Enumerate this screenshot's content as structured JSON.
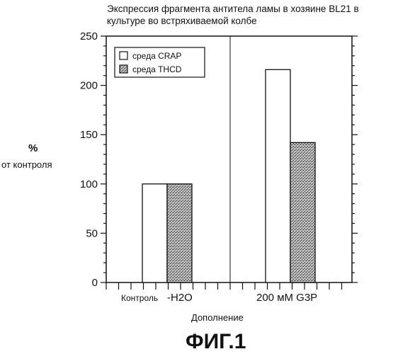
{
  "chart_data": {
    "type": "bar",
    "title": "Экспрессия фрагмента антитела ламы в хозяине BL21 в культуре во встряхиваемой колбе",
    "ylabel_symbol": "%",
    "ylabel": "от контроля",
    "xlabel": "Дополнение",
    "categories": [
      "Контроль",
      "-H2O",
      "200 мМ G3P"
    ],
    "series": [
      {
        "name": "среда CRAP",
        "values": [
          null,
          100,
          216
        ],
        "color": "#ffffff"
      },
      {
        "name": "среда THCD",
        "values": [
          null,
          100,
          142
        ],
        "color": "#a9a9a9"
      }
    ],
    "yticks": [
      0,
      50,
      100,
      150,
      200,
      250
    ],
    "ylim": [
      0,
      250
    ],
    "grid": false,
    "legend_position": "top-left"
  },
  "figure_label": "ФИГ.1"
}
